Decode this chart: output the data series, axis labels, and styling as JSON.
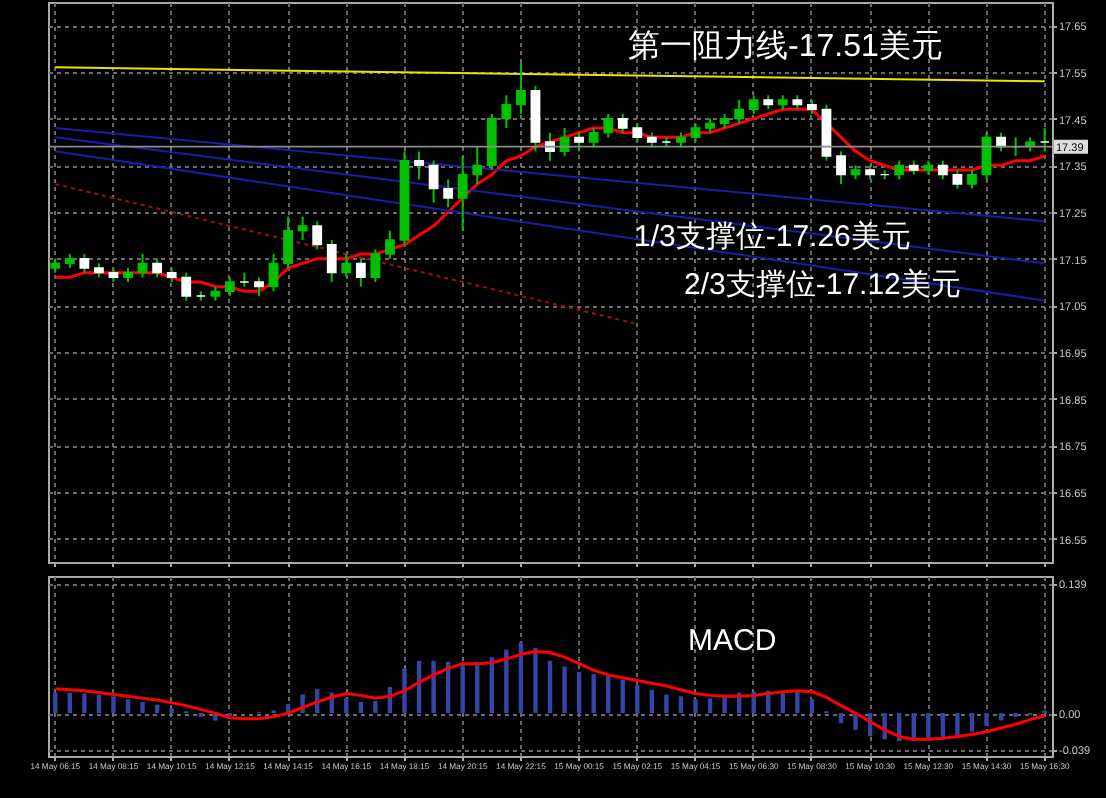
{
  "chart_data": [
    {
      "type": "candlestick",
      "categories": [
        "14 May 06:15",
        null,
        null,
        null,
        "14 May 08:15",
        null,
        null,
        null,
        "14 May 10:15",
        null,
        null,
        null,
        "14 May 12:15",
        null,
        null,
        null,
        "14 May 14:15",
        null,
        null,
        null,
        "14 May 16:15",
        null,
        null,
        null,
        "14 May 18:15",
        null,
        null,
        null,
        "14 May 20:15",
        null,
        null,
        null,
        "14 May 22:15",
        null,
        null,
        null,
        "15 May 00:15",
        null,
        null,
        null,
        "15 May 02:15",
        null,
        null,
        null,
        "15 May 04:15",
        null,
        null,
        null,
        "15 May 06:30",
        null,
        null,
        null,
        "15 May 08:30",
        null,
        null,
        null,
        "15 May 10:30",
        null,
        null,
        null,
        "15 May 12:30",
        null,
        null,
        null,
        "15 May 14:30",
        null,
        null,
        null,
        "15 May 16:30"
      ],
      "ohlc": [
        [
          17.13,
          17.15,
          17.12,
          17.14
        ],
        [
          17.14,
          17.16,
          17.13,
          17.15
        ],
        [
          17.15,
          17.16,
          17.12,
          17.13
        ],
        [
          17.13,
          17.14,
          17.11,
          17.12
        ],
        [
          17.12,
          17.13,
          17.1,
          17.11
        ],
        [
          17.11,
          17.13,
          17.1,
          17.12
        ],
        [
          17.12,
          17.16,
          17.11,
          17.14
        ],
        [
          17.14,
          17.15,
          17.11,
          17.12
        ],
        [
          17.12,
          17.13,
          17.1,
          17.11
        ],
        [
          17.11,
          17.12,
          17.06,
          17.07
        ],
        [
          17.07,
          17.08,
          17.06,
          17.07
        ],
        [
          17.07,
          17.09,
          17.06,
          17.08
        ],
        [
          17.08,
          17.11,
          17.07,
          17.1
        ],
        [
          17.1,
          17.12,
          17.09,
          17.1
        ],
        [
          17.1,
          17.11,
          17.07,
          17.09
        ],
        [
          17.09,
          17.16,
          17.08,
          17.14
        ],
        [
          17.14,
          17.24,
          17.13,
          17.21
        ],
        [
          17.21,
          17.24,
          17.19,
          17.22
        ],
        [
          17.22,
          17.23,
          17.17,
          17.18
        ],
        [
          17.18,
          17.19,
          17.1,
          17.12
        ],
        [
          17.12,
          17.16,
          17.11,
          17.14
        ],
        [
          17.14,
          17.15,
          17.09,
          17.11
        ],
        [
          17.11,
          17.17,
          17.1,
          17.16
        ],
        [
          17.16,
          17.21,
          17.15,
          17.19
        ],
        [
          17.19,
          17.38,
          17.18,
          17.36
        ],
        [
          17.36,
          17.38,
          17.32,
          17.35
        ],
        [
          17.35,
          17.36,
          17.27,
          17.3
        ],
        [
          17.3,
          17.32,
          17.26,
          17.28
        ],
        [
          17.28,
          17.37,
          17.21,
          17.33
        ],
        [
          17.33,
          17.39,
          17.31,
          17.35
        ],
        [
          17.35,
          17.46,
          17.34,
          17.45
        ],
        [
          17.45,
          17.5,
          17.43,
          17.48
        ],
        [
          17.48,
          17.57,
          17.46,
          17.51
        ],
        [
          17.51,
          17.52,
          17.38,
          17.4
        ],
        [
          17.4,
          17.42,
          17.36,
          17.38
        ],
        [
          17.38,
          17.43,
          17.37,
          17.41
        ],
        [
          17.41,
          17.42,
          17.38,
          17.4
        ],
        [
          17.4,
          17.43,
          17.39,
          17.42
        ],
        [
          17.42,
          17.46,
          17.41,
          17.45
        ],
        [
          17.45,
          17.46,
          17.42,
          17.43
        ],
        [
          17.43,
          17.44,
          17.4,
          17.41
        ],
        [
          17.41,
          17.42,
          17.39,
          17.4
        ],
        [
          17.4,
          17.41,
          17.39,
          17.4
        ],
        [
          17.4,
          17.42,
          17.39,
          17.41
        ],
        [
          17.41,
          17.44,
          17.4,
          17.43
        ],
        [
          17.43,
          17.45,
          17.42,
          17.44
        ],
        [
          17.44,
          17.46,
          17.43,
          17.45
        ],
        [
          17.45,
          17.49,
          17.44,
          17.47
        ],
        [
          17.47,
          17.5,
          17.46,
          17.49
        ],
        [
          17.49,
          17.5,
          17.47,
          17.48
        ],
        [
          17.48,
          17.5,
          17.47,
          17.49
        ],
        [
          17.49,
          17.5,
          17.47,
          17.48
        ],
        [
          17.48,
          17.49,
          17.46,
          17.47
        ],
        [
          17.47,
          17.48,
          17.36,
          17.37
        ],
        [
          17.37,
          17.38,
          17.31,
          17.33
        ],
        [
          17.33,
          17.35,
          17.32,
          17.34
        ],
        [
          17.34,
          17.35,
          17.32,
          17.33
        ],
        [
          17.33,
          17.34,
          17.32,
          17.33
        ],
        [
          17.33,
          17.36,
          17.32,
          17.35
        ],
        [
          17.35,
          17.36,
          17.33,
          17.34
        ],
        [
          17.34,
          17.36,
          17.33,
          17.35
        ],
        [
          17.35,
          17.36,
          17.32,
          17.33
        ],
        [
          17.33,
          17.34,
          17.3,
          17.31
        ],
        [
          17.31,
          17.34,
          17.3,
          17.33
        ],
        [
          17.33,
          17.42,
          17.32,
          17.41
        ],
        [
          17.41,
          17.42,
          17.38,
          17.39
        ],
        [
          17.39,
          17.41,
          17.37,
          17.39
        ],
        [
          17.39,
          17.41,
          17.38,
          17.4
        ],
        [
          17.4,
          17.43,
          17.38,
          17.4
        ]
      ],
      "colors": [
        "#00c000",
        "#00c000",
        "#ffffff",
        "#ffffff",
        "#ffffff",
        "#00c000",
        "#00c000",
        "#ffffff",
        "#ffffff",
        "#ffffff",
        "#ffffff",
        "#00c000",
        "#00c000",
        "#ffffff",
        "#ffffff",
        "#00c000",
        "#00c000",
        "#00c000",
        "#ffffff",
        "#ffffff",
        "#00c000",
        "#ffffff",
        "#00c000",
        "#00c000",
        "#00c000",
        "#ffffff",
        "#ffffff",
        "#ffffff",
        "#00c000",
        "#00c000",
        "#00c000",
        "#00c000",
        "#00c000",
        "#ffffff",
        "#ffffff",
        "#00c000",
        "#ffffff",
        "#00c000",
        "#00c000",
        "#ffffff",
        "#ffffff",
        "#ffffff",
        "#ffffff",
        "#00c000",
        "#00c000",
        "#00c000",
        "#00c000",
        "#00c000",
        "#00c000",
        "#ffffff",
        "#00c000",
        "#ffffff",
        "#ffffff",
        "#ffffff",
        "#ffffff",
        "#00c000",
        "#ffffff",
        "#ffffff",
        "#00c000",
        "#ffffff",
        "#00c000",
        "#ffffff",
        "#ffffff",
        "#00c000",
        "#00c000",
        "#ffffff",
        "#ffffff",
        "#00c000",
        "#ffffff"
      ],
      "series": [
        {
          "type": "line",
          "color": "#ff0000",
          "values": [
            17.11,
            17.11,
            17.12,
            17.12,
            17.12,
            17.12,
            17.12,
            17.12,
            17.11,
            17.1,
            17.1,
            17.09,
            17.09,
            17.08,
            17.08,
            17.1,
            17.13,
            17.14,
            17.15,
            17.15,
            17.15,
            17.16,
            17.16,
            17.17,
            17.18,
            17.2,
            17.22,
            17.25,
            17.28,
            17.31,
            17.33,
            17.36,
            17.37,
            17.39,
            17.4,
            17.41,
            17.42,
            17.43,
            17.43,
            17.42,
            17.42,
            17.41,
            17.41,
            17.41,
            17.42,
            17.42,
            17.43,
            17.44,
            17.45,
            17.46,
            17.47,
            17.47,
            17.47,
            17.44,
            17.41,
            17.38,
            17.36,
            17.35,
            17.34,
            17.34,
            17.34,
            17.34,
            17.34,
            17.34,
            17.35,
            17.35,
            17.36,
            17.36,
            17.37
          ]
        },
        {
          "type": "line",
          "color": "#e6e600",
          "x": [
            "14 May 06:15",
            "15 May 16:30"
          ],
          "values": [
            17.56,
            17.53
          ]
        },
        {
          "type": "line",
          "color": "#1c1ca8",
          "x": [
            "14 May 06:15",
            "15 May 16:30"
          ],
          "values": [
            17.43,
            17.23
          ]
        },
        {
          "type": "line",
          "color": "#1c1ca8",
          "x": [
            "14 May 06:15",
            "15 May 16:30"
          ],
          "values": [
            17.41,
            17.14
          ]
        },
        {
          "type": "line",
          "color": "#1c1ca8",
          "x": [
            "14 May 06:15",
            "15 May 16:30"
          ],
          "values": [
            17.38,
            17.06
          ]
        },
        {
          "type": "line",
          "color": "#a01010",
          "line_style": "dotted",
          "x": [
            "14 May 06:15",
            "15 May 02:15"
          ],
          "values": [
            17.31,
            17.01
          ]
        }
      ],
      "ref_lines": [
        {
          "axis": "y",
          "value": 17.39,
          "label": "17.39",
          "color": "#8c8c8c"
        }
      ],
      "annotations": [
        "第一阻力线-17.51美元",
        "1/3支撑位-17.26美元",
        "2/3支撑位-17.12美元"
      ],
      "ylim": [
        16.5,
        17.7
      ],
      "yticks": [
        17.65,
        17.55,
        17.45,
        17.35,
        17.25,
        17.15,
        17.05,
        16.95,
        16.85,
        16.75,
        16.65,
        16.55
      ],
      "grid": true,
      "tick_labels": "y"
    },
    {
      "type": "bar",
      "categories": [
        "14 May 06:15",
        null,
        null,
        null,
        "14 May 08:15",
        null,
        null,
        null,
        "14 May 10:15",
        null,
        null,
        null,
        "14 May 12:15",
        null,
        null,
        null,
        "14 May 14:15",
        null,
        null,
        null,
        "14 May 16:15",
        null,
        null,
        null,
        "14 May 18:15",
        null,
        null,
        null,
        "14 May 20:15",
        null,
        null,
        null,
        "14 May 22:15",
        null,
        null,
        null,
        "15 May 00:15",
        null,
        null,
        null,
        "15 May 02:15",
        null,
        null,
        null,
        "15 May 04:15",
        null,
        null,
        null,
        "15 May 06:30",
        null,
        null,
        null,
        "15 May 08:30",
        null,
        null,
        null,
        "15 May 10:30",
        null,
        null,
        null,
        "15 May 12:30",
        null,
        null,
        null,
        "15 May 14:30",
        null,
        null,
        null,
        "15 May 16:30"
      ],
      "series": [
        {
          "type": "bar",
          "color": "#3444a8",
          "values": [
            0.022,
            0.022,
            0.021,
            0.02,
            0.018,
            0.015,
            0.012,
            0.009,
            0.005,
            0.002,
            -0.004,
            -0.008,
            -0.003,
            0.0,
            0.001,
            0.003,
            0.01,
            0.02,
            0.026,
            0.022,
            0.016,
            0.012,
            0.013,
            0.028,
            0.048,
            0.056,
            0.056,
            0.055,
            0.054,
            0.055,
            0.06,
            0.068,
            0.076,
            0.07,
            0.056,
            0.05,
            0.044,
            0.042,
            0.04,
            0.036,
            0.03,
            0.025,
            0.02,
            0.018,
            0.015,
            0.016,
            0.019,
            0.022,
            0.023,
            0.024,
            0.024,
            0.024,
            0.015,
            0.002,
            -0.011,
            -0.018,
            -0.025,
            -0.028,
            -0.03,
            -0.03,
            -0.029,
            -0.027,
            -0.024,
            -0.02,
            -0.014,
            -0.008,
            -0.004,
            -0.002,
            0.003
          ]
        },
        {
          "type": "line",
          "color": "#ff0000",
          "values": [
            0.026,
            0.025,
            0.024,
            0.022,
            0.02,
            0.018,
            0.016,
            0.014,
            0.011,
            0.008,
            0.004,
            0.0,
            -0.005,
            -0.006,
            -0.006,
            -0.004,
            0.0,
            0.006,
            0.012,
            0.017,
            0.021,
            0.019,
            0.016,
            0.018,
            0.024,
            0.033,
            0.041,
            0.048,
            0.053,
            0.053,
            0.054,
            0.058,
            0.063,
            0.066,
            0.065,
            0.06,
            0.053,
            0.046,
            0.041,
            0.038,
            0.035,
            0.032,
            0.029,
            0.025,
            0.021,
            0.019,
            0.018,
            0.018,
            0.019,
            0.021,
            0.023,
            0.024,
            0.023,
            0.017,
            0.008,
            0.0,
            -0.009,
            -0.018,
            -0.025,
            -0.028,
            -0.028,
            -0.027,
            -0.025,
            -0.023,
            -0.02,
            -0.016,
            -0.012,
            -0.007,
            -0.003
          ]
        }
      ],
      "annotations": [
        "MACD"
      ],
      "ylim": [
        -0.046,
        0.147
      ],
      "yticks": [
        0.139,
        {
          "value": 0,
          "label": "0.00"
        },
        -0.039
      ],
      "grid": true
    }
  ]
}
